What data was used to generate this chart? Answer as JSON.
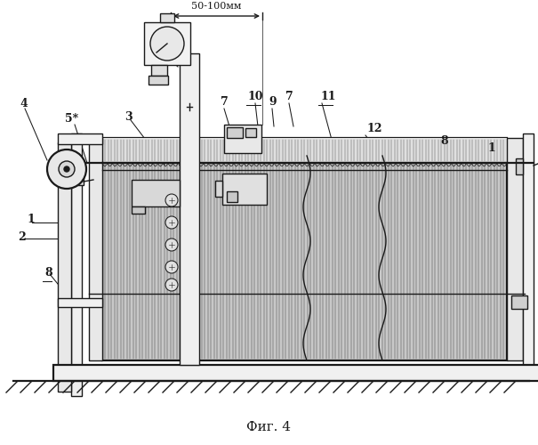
{
  "title": "Фиг. 4",
  "bg_color": "#ffffff",
  "dimension_text": "50-100мм",
  "black": "#1a1a1a",
  "fig_w": 6.05,
  "fig_h": 5.0,
  "dpi": 100
}
